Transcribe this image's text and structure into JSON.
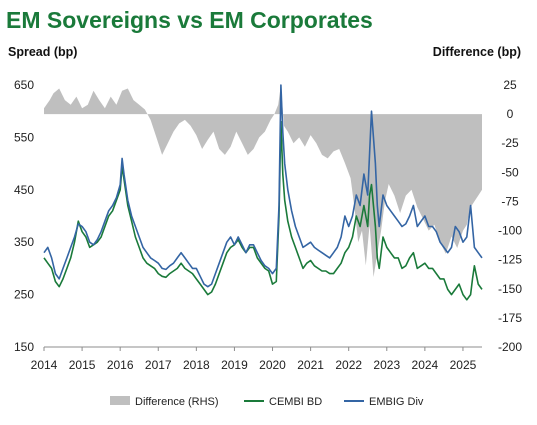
{
  "chart_data": {
    "type": "line",
    "title": "EM Sovereigns vs EM Corporates",
    "ylabel_left": "Spread (bp)",
    "ylabel_right": "Difference (bp)",
    "xlabel": "",
    "ylim_left": [
      150,
      650
    ],
    "ylim_right": [
      -200,
      25
    ],
    "yticks_left": [
      150,
      250,
      350,
      450,
      550,
      650
    ],
    "yticks_right": [
      -200,
      -175,
      -150,
      -125,
      -100,
      -75,
      -50,
      -25,
      0,
      25
    ],
    "xlim": [
      2014,
      2025.5
    ],
    "xticks": [
      2014,
      2015,
      2016,
      2017,
      2018,
      2019,
      2020,
      2021,
      2022,
      2023,
      2024,
      2025
    ],
    "grid": false,
    "legend_position": "bottom",
    "colors": {
      "title": "#1a7a3a",
      "difference": "#bfbfbf",
      "cembi": "#1a7a3a",
      "embig": "#3465a4"
    },
    "series": [
      {
        "name": "Difference (RHS)",
        "type": "area",
        "axis": "right",
        "x": [
          2014.0,
          2014.15,
          2014.25,
          2014.4,
          2014.55,
          2014.7,
          2014.85,
          2015.0,
          2015.15,
          2015.3,
          2015.45,
          2015.6,
          2015.75,
          2015.9,
          2016.05,
          2016.2,
          2016.35,
          2016.5,
          2016.65,
          2016.8,
          2016.95,
          2017.1,
          2017.25,
          2017.4,
          2017.55,
          2017.7,
          2017.85,
          2018.0,
          2018.15,
          2018.3,
          2018.45,
          2018.6,
          2018.75,
          2018.9,
          2019.05,
          2019.2,
          2019.35,
          2019.5,
          2019.65,
          2019.8,
          2019.95,
          2020.05,
          2020.15,
          2020.22,
          2020.3,
          2020.4,
          2020.55,
          2020.7,
          2020.85,
          2021.0,
          2021.15,
          2021.3,
          2021.45,
          2021.6,
          2021.75,
          2021.9,
          2022.05,
          2022.15,
          2022.25,
          2022.35,
          2022.45,
          2022.55,
          2022.65,
          2022.75,
          2022.85,
          2022.95,
          2023.05,
          2023.2,
          2023.35,
          2023.5,
          2023.65,
          2023.8,
          2023.95,
          2024.1,
          2024.25,
          2024.4,
          2024.55,
          2024.7,
          2024.85,
          2025.0,
          2025.1,
          2025.2,
          2025.3,
          2025.4,
          2025.5
        ],
        "values": [
          5,
          12,
          18,
          22,
          12,
          8,
          15,
          5,
          8,
          20,
          12,
          5,
          15,
          8,
          20,
          22,
          12,
          8,
          4,
          -5,
          -20,
          -35,
          -25,
          -15,
          -8,
          -5,
          -10,
          -18,
          -30,
          -22,
          -15,
          -30,
          -35,
          -28,
          -15,
          -25,
          -35,
          -30,
          -20,
          -15,
          -5,
          0,
          8,
          25,
          -10,
          -15,
          -25,
          -20,
          -28,
          -18,
          -25,
          -35,
          -38,
          -32,
          -30,
          -42,
          -55,
          -80,
          -110,
          -100,
          -130,
          -95,
          -140,
          -120,
          -100,
          -75,
          -60,
          -70,
          -85,
          -70,
          -65,
          -80,
          -90,
          -100,
          -95,
          -110,
          -120,
          -105,
          -115,
          -100,
          -95,
          -80,
          -75,
          -70,
          -65
        ]
      },
      {
        "name": "CEMBI BD",
        "type": "line",
        "axis": "left",
        "x": [
          2014.0,
          2014.1,
          2014.2,
          2014.3,
          2014.4,
          2014.5,
          2014.6,
          2014.7,
          2014.8,
          2014.9,
          2015.0,
          2015.1,
          2015.2,
          2015.3,
          2015.4,
          2015.5,
          2015.6,
          2015.7,
          2015.8,
          2015.9,
          2016.0,
          2016.05,
          2016.1,
          2016.2,
          2016.3,
          2016.4,
          2016.5,
          2016.6,
          2016.7,
          2016.8,
          2016.9,
          2017.0,
          2017.1,
          2017.2,
          2017.3,
          2017.4,
          2017.5,
          2017.6,
          2017.7,
          2017.8,
          2017.9,
          2018.0,
          2018.1,
          2018.2,
          2018.3,
          2018.4,
          2018.5,
          2018.6,
          2018.7,
          2018.8,
          2018.9,
          2019.0,
          2019.1,
          2019.2,
          2019.3,
          2019.4,
          2019.5,
          2019.6,
          2019.7,
          2019.8,
          2019.9,
          2020.0,
          2020.1,
          2020.17,
          2020.22,
          2020.27,
          2020.32,
          2020.4,
          2020.5,
          2020.6,
          2020.7,
          2020.8,
          2020.9,
          2021.0,
          2021.1,
          2021.2,
          2021.3,
          2021.4,
          2021.5,
          2021.6,
          2021.7,
          2021.8,
          2021.9,
          2022.0,
          2022.1,
          2022.2,
          2022.3,
          2022.4,
          2022.5,
          2022.55,
          2022.6,
          2022.7,
          2022.75,
          2022.8,
          2022.9,
          2023.0,
          2023.1,
          2023.2,
          2023.3,
          2023.4,
          2023.5,
          2023.6,
          2023.7,
          2023.8,
          2023.9,
          2024.0,
          2024.1,
          2024.2,
          2024.3,
          2024.4,
          2024.5,
          2024.6,
          2024.7,
          2024.8,
          2024.9,
          2025.0,
          2025.1,
          2025.2,
          2025.25,
          2025.3,
          2025.4,
          2025.5
        ],
        "values": [
          320,
          310,
          300,
          275,
          265,
          280,
          300,
          320,
          350,
          390,
          370,
          360,
          340,
          345,
          350,
          360,
          380,
          400,
          410,
          430,
          450,
          495,
          470,
          420,
          390,
          360,
          340,
          320,
          310,
          305,
          300,
          290,
          285,
          283,
          290,
          295,
          300,
          310,
          300,
          295,
          290,
          280,
          270,
          260,
          250,
          255,
          270,
          290,
          310,
          330,
          340,
          345,
          355,
          340,
          330,
          340,
          340,
          320,
          310,
          300,
          295,
          270,
          275,
          400,
          580,
          480,
          430,
          390,
          360,
          340,
          320,
          300,
          310,
          315,
          305,
          300,
          295,
          295,
          290,
          290,
          300,
          310,
          330,
          340,
          360,
          400,
          380,
          420,
          380,
          440,
          460,
          380,
          320,
          300,
          360,
          340,
          330,
          320,
          320,
          300,
          305,
          320,
          330,
          300,
          305,
          310,
          300,
          300,
          290,
          280,
          280,
          260,
          250,
          260,
          270,
          250,
          240,
          250,
          280,
          305,
          270,
          260
        ]
      },
      {
        "name": "EMBIG Div",
        "type": "line",
        "axis": "left",
        "x": [
          2014.0,
          2014.1,
          2014.2,
          2014.3,
          2014.4,
          2014.5,
          2014.6,
          2014.7,
          2014.8,
          2014.9,
          2015.0,
          2015.1,
          2015.2,
          2015.3,
          2015.4,
          2015.5,
          2015.6,
          2015.7,
          2015.8,
          2015.9,
          2016.0,
          2016.05,
          2016.1,
          2016.2,
          2016.3,
          2016.4,
          2016.5,
          2016.6,
          2016.7,
          2016.8,
          2016.9,
          2017.0,
          2017.1,
          2017.2,
          2017.3,
          2017.4,
          2017.5,
          2017.6,
          2017.7,
          2017.8,
          2017.9,
          2018.0,
          2018.1,
          2018.2,
          2018.3,
          2018.4,
          2018.5,
          2018.6,
          2018.7,
          2018.8,
          2018.9,
          2019.0,
          2019.1,
          2019.2,
          2019.3,
          2019.4,
          2019.5,
          2019.6,
          2019.7,
          2019.8,
          2019.9,
          2020.0,
          2020.1,
          2020.17,
          2020.22,
          2020.27,
          2020.32,
          2020.4,
          2020.5,
          2020.6,
          2020.7,
          2020.8,
          2020.9,
          2021.0,
          2021.1,
          2021.2,
          2021.3,
          2021.4,
          2021.5,
          2021.6,
          2021.7,
          2021.8,
          2021.9,
          2022.0,
          2022.1,
          2022.2,
          2022.3,
          2022.4,
          2022.5,
          2022.55,
          2022.6,
          2022.7,
          2022.75,
          2022.8,
          2022.9,
          2023.0,
          2023.1,
          2023.2,
          2023.3,
          2023.4,
          2023.5,
          2023.6,
          2023.7,
          2023.8,
          2023.9,
          2024.0,
          2024.1,
          2024.2,
          2024.3,
          2024.4,
          2024.5,
          2024.6,
          2024.7,
          2024.8,
          2024.9,
          2025.0,
          2025.1,
          2025.2,
          2025.25,
          2025.3,
          2025.4,
          2025.5
        ],
        "values": [
          330,
          340,
          320,
          290,
          280,
          300,
          320,
          340,
          360,
          385,
          380,
          370,
          350,
          345,
          355,
          370,
          390,
          410,
          420,
          435,
          460,
          510,
          480,
          430,
          400,
          380,
          360,
          340,
          330,
          320,
          315,
          310,
          300,
          298,
          305,
          310,
          320,
          330,
          320,
          310,
          300,
          300,
          285,
          270,
          265,
          270,
          290,
          310,
          330,
          350,
          360,
          345,
          360,
          345,
          330,
          345,
          345,
          330,
          315,
          305,
          300,
          290,
          300,
          420,
          650,
          560,
          500,
          450,
          410,
          380,
          360,
          340,
          345,
          350,
          340,
          335,
          330,
          325,
          320,
          330,
          340,
          360,
          400,
          380,
          400,
          440,
          420,
          480,
          440,
          520,
          600,
          500,
          420,
          380,
          440,
          420,
          410,
          400,
          390,
          380,
          385,
          400,
          420,
          380,
          390,
          400,
          380,
          380,
          370,
          350,
          340,
          330,
          340,
          380,
          370,
          350,
          360,
          420,
          380,
          340,
          330,
          320
        ]
      }
    ]
  }
}
